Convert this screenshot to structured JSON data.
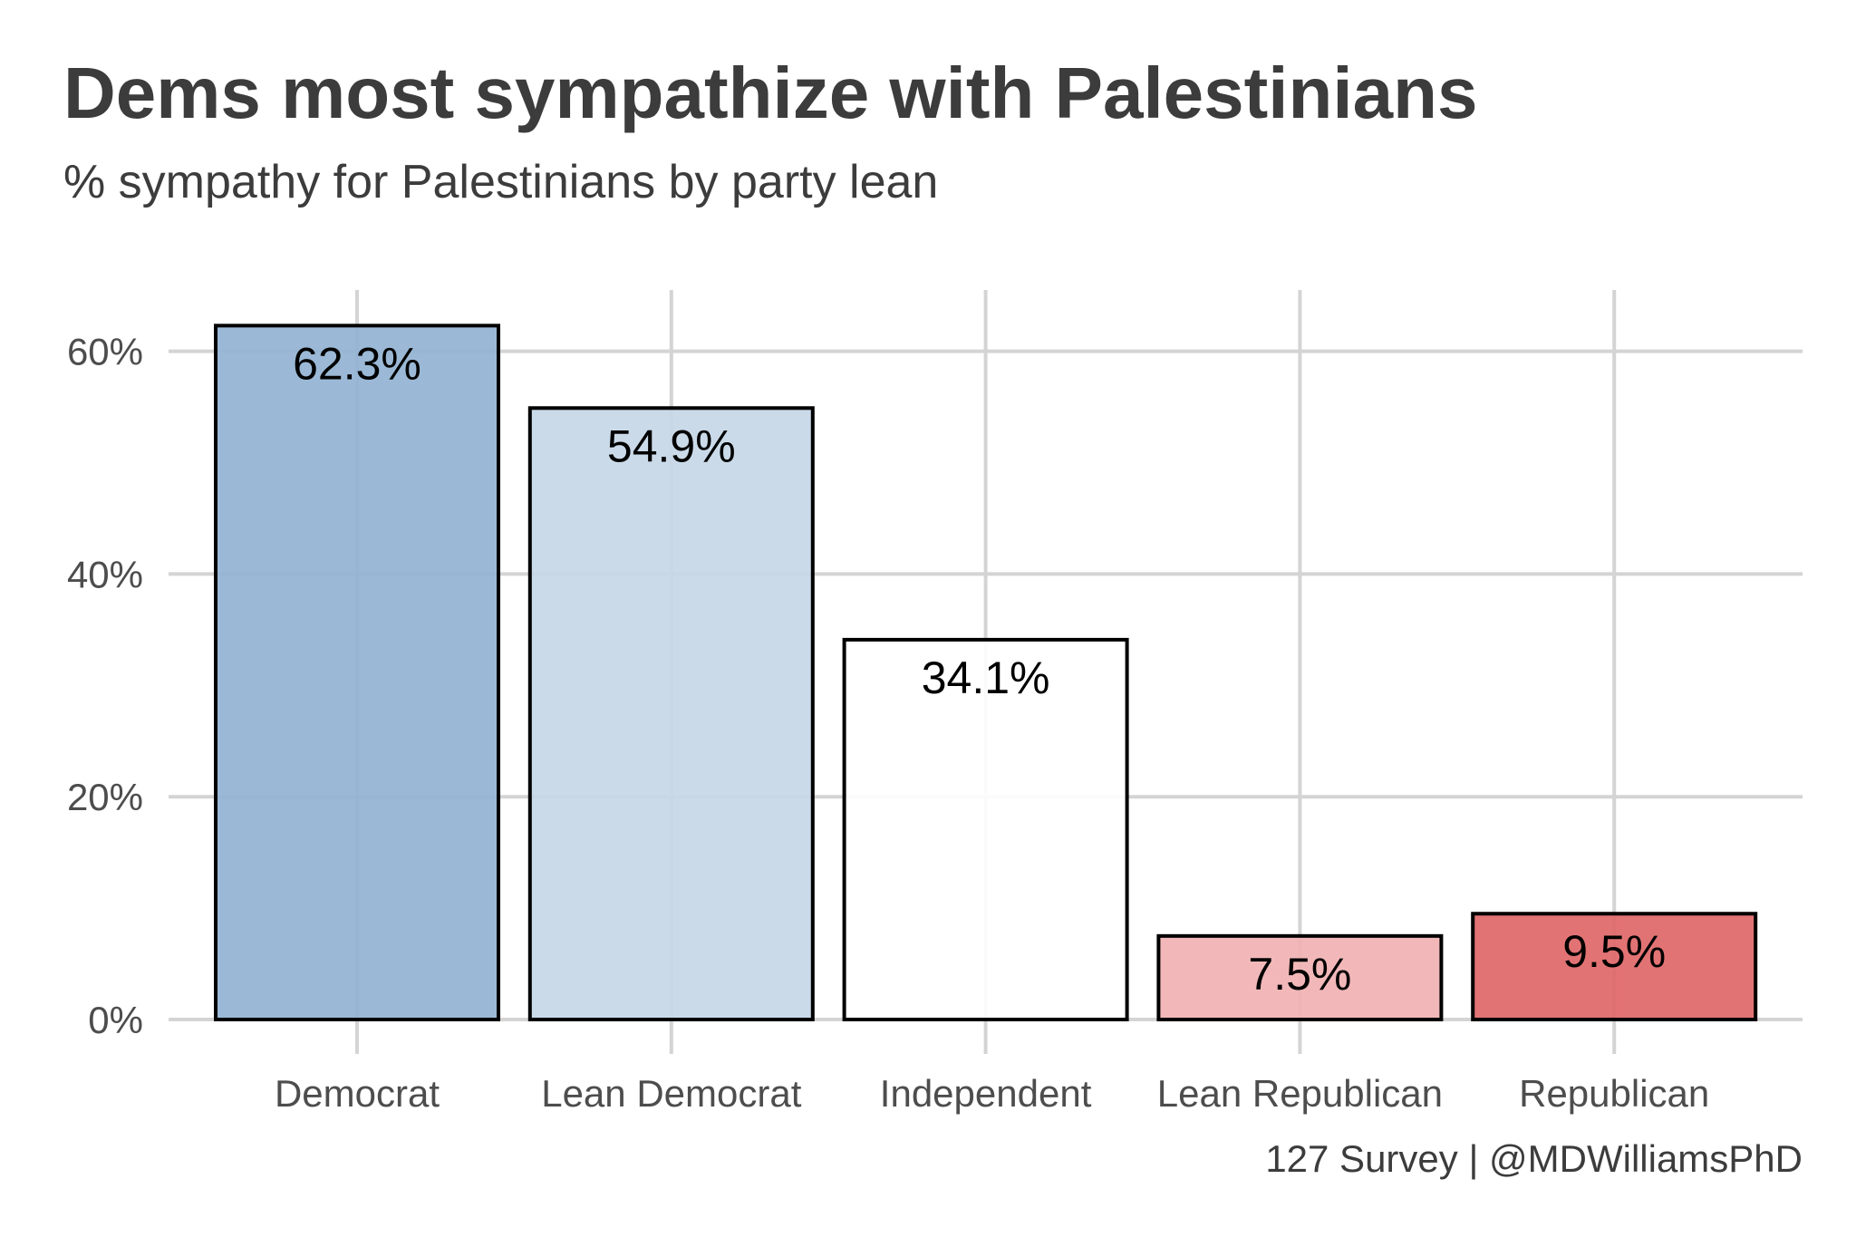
{
  "chart_data": {
    "type": "bar",
    "title": "Dems most sympathize with Palestinians",
    "subtitle": "% sympathy for Palestinians by party lean",
    "caption": "127 Survey | @MDWilliamsPhD",
    "xlabel": "",
    "ylabel": "",
    "categories": [
      "Democrat",
      "Lean Democrat",
      "Independent",
      "Lean Republican",
      "Republican"
    ],
    "values": [
      62.3,
      54.9,
      34.1,
      7.5,
      9.5
    ],
    "data_labels": [
      "62.3%",
      "54.9%",
      "34.1%",
      "7.5%",
      "9.5%"
    ],
    "colors": [
      "#92b3d2",
      "#c6d7e7",
      "#ffffff",
      "#f1b2b3",
      "#e06768"
    ],
    "bar_outline": "#000000",
    "ylim": [
      0,
      65
    ],
    "yticks": [
      0,
      20,
      40,
      60
    ],
    "ytick_labels": [
      "0%",
      "20%",
      "40%",
      "60%"
    ],
    "grid": true,
    "legend": "none"
  }
}
